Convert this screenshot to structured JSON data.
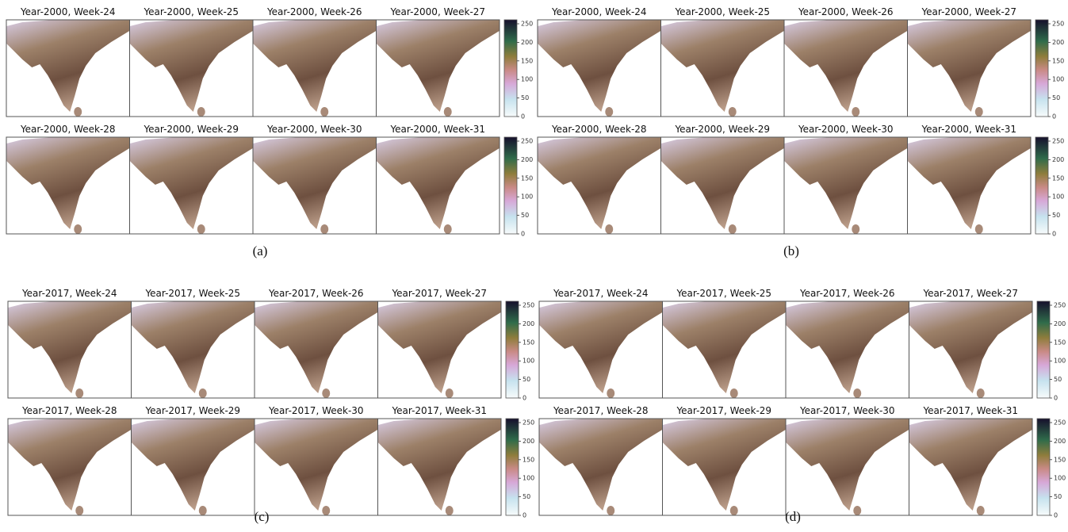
{
  "panels": [
    {
      "label": "(a)",
      "rows": [
        {
          "titles": [
            "Year-2000, Week-24",
            "Year-2000, Week-25",
            "Year-2000, Week-26",
            "Year-2000, Week-27"
          ],
          "colorbar_ticks": [
            0,
            50,
            100,
            150,
            200,
            250
          ]
        },
        {
          "titles": [
            "Year-2000, Week-28",
            "Year-2000, Week-29",
            "Year-2000, Week-30",
            "Year-2000, Week-31"
          ],
          "colorbar_ticks": [
            0,
            50,
            100,
            150,
            200,
            250
          ]
        }
      ]
    },
    {
      "label": "(b)",
      "rows": [
        {
          "titles": [
            "Year-2000, Week-24",
            "Year-2000, Week-25",
            "Year-2000, Week-26",
            "Year-2000, Week-27"
          ],
          "colorbar_ticks": [
            0,
            50,
            100,
            150,
            200,
            250
          ]
        },
        {
          "titles": [
            "Year-2000, Week-28",
            "Year-2000, Week-29",
            "Year-2000, Week-30",
            "Year-2000, Week-31"
          ],
          "colorbar_ticks": [
            0,
            50,
            100,
            150,
            200,
            250
          ]
        }
      ]
    },
    {
      "label": "(c)",
      "rows": [
        {
          "titles": [
            "Year-2017, Week-24",
            "Year-2017, Week-25",
            "Year-2017, Week-26",
            "Year-2017, Week-27"
          ],
          "colorbar_ticks": [
            0,
            50,
            100,
            150,
            200,
            250
          ]
        },
        {
          "titles": [
            "Year-2017, Week-28",
            "Year-2017, Week-29",
            "Year-2017, Week-30",
            "Year-2017, Week-31"
          ],
          "colorbar_ticks": [
            0,
            50,
            100,
            150,
            200,
            250
          ]
        }
      ]
    },
    {
      "label": "(d)",
      "rows": [
        {
          "titles": [
            "Year-2017, Week-24",
            "Year-2017, Week-25",
            "Year-2017, Week-26",
            "Year-2017, Week-27"
          ],
          "colorbar_ticks": [
            0,
            50,
            100,
            150,
            200,
            250
          ]
        },
        {
          "titles": [
            "Year-2017, Week-28",
            "Year-2017, Week-29",
            "Year-2017, Week-30",
            "Year-2017, Week-31"
          ],
          "colorbar_ticks": [
            0,
            50,
            100,
            150,
            200,
            250
          ]
        }
      ]
    }
  ]
}
